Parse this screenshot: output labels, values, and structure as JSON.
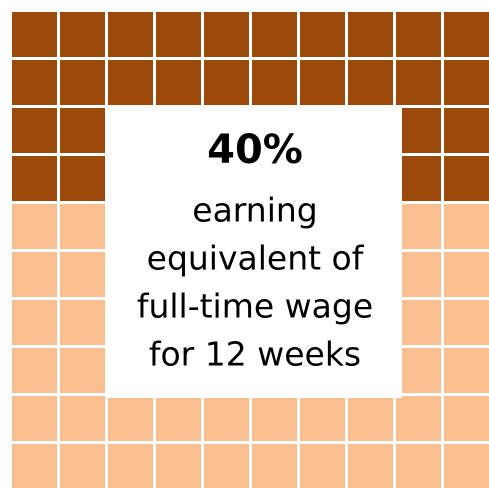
{
  "chart_data": {
    "type": "waffle",
    "values": [
      40
    ],
    "value_labels": [
      "40%"
    ],
    "description": [
      "earning",
      "equivalent of",
      "full-time wage",
      "for 12 weeks"
    ],
    "colors": [
      "#9C4A0B",
      "#F9BF91"
    ]
  }
}
